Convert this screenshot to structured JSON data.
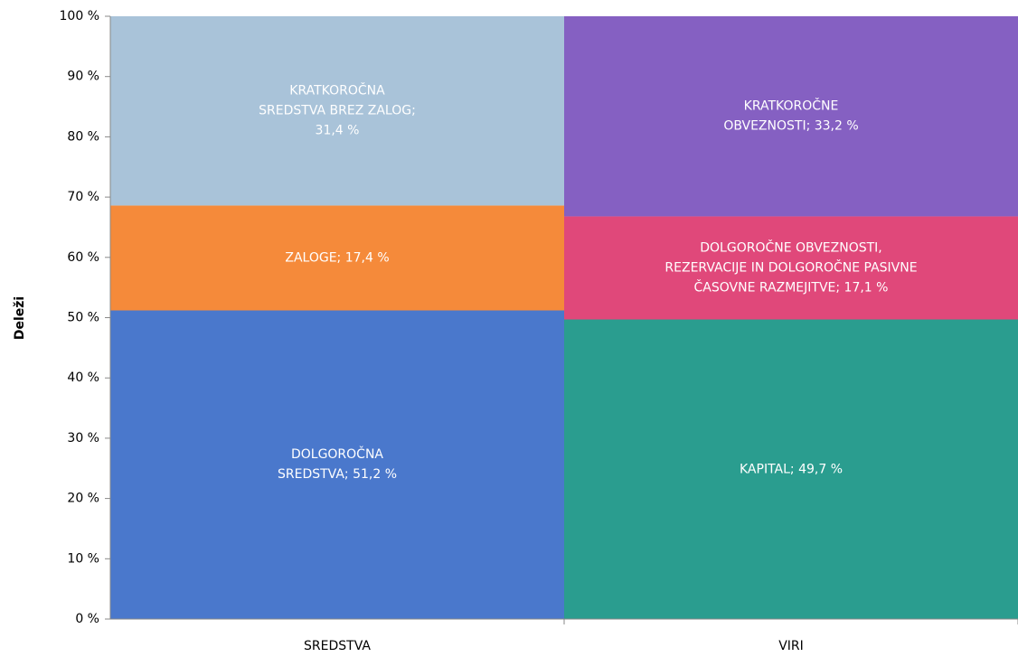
{
  "chart_data": {
    "type": "stacked_bar",
    "y_axis_label": "Deleži",
    "categories": [
      "SREDSTVA",
      "VIRI"
    ],
    "series": [
      {
        "color": "#4a78cc",
        "values": [
          51.2,
          null
        ],
        "value_labels": [
          "DOLGOROČNA\nSREDSTVA;  51,2 %",
          null
        ]
      },
      {
        "color": "#f58a3a",
        "values": [
          17.4,
          null
        ],
        "value_labels": [
          "ZALOGE;  17,4 %",
          null
        ]
      },
      {
        "color": "#a9c3d9",
        "values": [
          31.4,
          null
        ],
        "value_labels": [
          "KRATKOROČNA\nSREDSTVA  BREZ ZALOG;\n31,4 %",
          null
        ]
      },
      {
        "color": "#2a9d8f",
        "values": [
          null,
          49.7
        ],
        "value_labels": [
          null,
          "KAPITAL;  49,7 %"
        ]
      },
      {
        "color": "#e0487a",
        "values": [
          null,
          17.1
        ],
        "value_labels": [
          null,
          "DOLGOROČNE OBVEZNOSTI,\nREZERVACIJE IN DOLGOROČNE PASIVNE\nČASOVNE RAZMEJITVE; 17,1 %"
        ]
      },
      {
        "color": "#8560c2",
        "values": [
          null,
          33.2
        ],
        "value_labels": [
          null,
          "KRATKOROČNE\nOBVEZNOSTI;  33,2 %"
        ]
      }
    ],
    "ylim": [
      0,
      100
    ],
    "yticks": [
      {
        "value": 0,
        "label": "0 %"
      },
      {
        "value": 10,
        "label": "10 %"
      },
      {
        "value": 20,
        "label": "20 %"
      },
      {
        "value": 30,
        "label": "30 %"
      },
      {
        "value": 40,
        "label": "40 %"
      },
      {
        "value": 50,
        "label": "50 %"
      },
      {
        "value": 60,
        "label": "60 %"
      },
      {
        "value": 70,
        "label": "70 %"
      },
      {
        "value": 80,
        "label": "80 %"
      },
      {
        "value": 90,
        "label": "90 %"
      },
      {
        "value": 100,
        "label": "100 %"
      }
    ]
  }
}
